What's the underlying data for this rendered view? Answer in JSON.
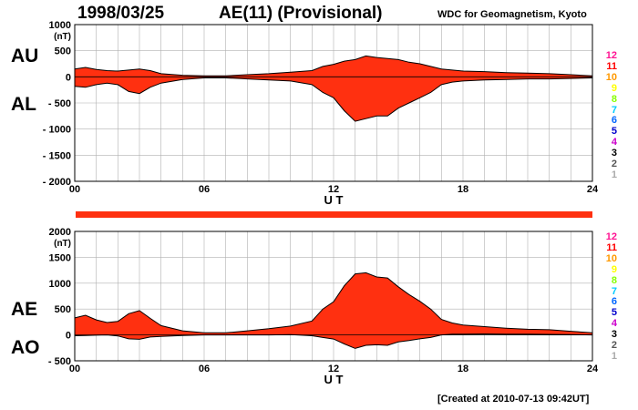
{
  "header": {
    "date": "1998/03/25",
    "title": "AE(11) (Provisional)",
    "organization": "WDC for Geomagnetism, Kyoto"
  },
  "footer": {
    "created": "[Created at 2010-07-13 09:42UT]"
  },
  "colors": {
    "fill": "#ff3010",
    "outline": "#000000",
    "grid": "#b0b0b0"
  },
  "legend": {
    "stations": [
      "12",
      "11",
      "10",
      "9",
      "8",
      "7",
      "6",
      "5",
      "4",
      "3",
      "2",
      "1"
    ],
    "colors": [
      "#ff1493",
      "#ff0000",
      "#ff9900",
      "#ffff00",
      "#88ff00",
      "#00ccff",
      "#0066ff",
      "#0000cc",
      "#cc00cc",
      "#000000",
      "#555555",
      "#aaaaaa"
    ]
  },
  "chart_data": [
    {
      "type": "area",
      "panel": "top",
      "unit": "(nT)",
      "labels": {
        "upper": "AU",
        "lower": "AL"
      },
      "xlabel": "U T",
      "xlim": [
        0,
        24
      ],
      "xticks": [
        "00",
        "06",
        "12",
        "18",
        "24"
      ],
      "ylim": [
        -2000,
        1000
      ],
      "yticks": [
        "1000",
        "500",
        "0",
        "- 500",
        "- 1000",
        "- 1500",
        "- 2000"
      ],
      "grid": true,
      "series": [
        {
          "name": "AU",
          "x": [
            0,
            0.5,
            1,
            1.5,
            2,
            2.5,
            3,
            3.5,
            4,
            5,
            6,
            7,
            8,
            9,
            10,
            11,
            11.5,
            12,
            12.5,
            13,
            13.5,
            14,
            14.5,
            15,
            15.5,
            16,
            16.5,
            17,
            17.5,
            18,
            19,
            20,
            21,
            22,
            23,
            24
          ],
          "values": [
            150,
            180,
            140,
            120,
            110,
            130,
            150,
            120,
            60,
            30,
            20,
            20,
            40,
            60,
            90,
            120,
            200,
            240,
            300,
            330,
            400,
            370,
            350,
            330,
            280,
            250,
            200,
            150,
            130,
            110,
            100,
            80,
            70,
            60,
            40,
            20
          ]
        },
        {
          "name": "AL",
          "x": [
            0,
            0.5,
            1,
            1.5,
            2,
            2.5,
            3,
            3.5,
            4,
            5,
            6,
            7,
            8,
            9,
            10,
            11,
            11.5,
            12,
            12.5,
            13,
            13.5,
            14,
            14.5,
            15,
            15.5,
            16,
            16.5,
            17,
            17.5,
            18,
            19,
            20,
            21,
            22,
            23,
            24
          ],
          "values": [
            -180,
            -200,
            -150,
            -120,
            -150,
            -280,
            -320,
            -200,
            -120,
            -50,
            -20,
            -20,
            -40,
            -60,
            -80,
            -150,
            -300,
            -400,
            -650,
            -850,
            -800,
            -750,
            -750,
            -600,
            -500,
            -400,
            -300,
            -150,
            -100,
            -80,
            -60,
            -50,
            -40,
            -40,
            -30,
            -20
          ]
        }
      ]
    },
    {
      "type": "area",
      "panel": "bottom",
      "unit": "(nT)",
      "labels": {
        "upper": "AE",
        "lower": "AO"
      },
      "xlabel": "U T",
      "xlim": [
        0,
        24
      ],
      "xticks": [
        "00",
        "06",
        "12",
        "18",
        "24"
      ],
      "ylim": [
        -500,
        2000
      ],
      "yticks": [
        "2000",
        "1500",
        "1000",
        "500",
        "0",
        "- 500"
      ],
      "grid": true,
      "series": [
        {
          "name": "AE",
          "x": [
            0,
            0.5,
            1,
            1.5,
            2,
            2.5,
            3,
            3.5,
            4,
            5,
            6,
            7,
            8,
            9,
            10,
            11,
            11.5,
            12,
            12.5,
            13,
            13.5,
            14,
            14.5,
            15,
            15.5,
            16,
            16.5,
            17,
            17.5,
            18,
            19,
            20,
            21,
            22,
            23,
            24
          ],
          "values": [
            330,
            380,
            290,
            240,
            260,
            410,
            470,
            320,
            180,
            80,
            40,
            40,
            80,
            120,
            170,
            270,
            500,
            640,
            950,
            1180,
            1200,
            1120,
            1100,
            930,
            780,
            650,
            500,
            300,
            230,
            190,
            160,
            130,
            110,
            100,
            70,
            40
          ]
        },
        {
          "name": "AO",
          "x": [
            0,
            0.5,
            1,
            1.5,
            2,
            2.5,
            3,
            3.5,
            4,
            5,
            6,
            7,
            8,
            9,
            10,
            11,
            11.5,
            12,
            12.5,
            13,
            13.5,
            14,
            14.5,
            15,
            15.5,
            16,
            16.5,
            17,
            17.5,
            18,
            19,
            20,
            21,
            22,
            23,
            24
          ],
          "values": [
            -15,
            -10,
            -5,
            0,
            -20,
            -75,
            -85,
            -40,
            -30,
            -10,
            0,
            0,
            0,
            0,
            5,
            -15,
            -50,
            -80,
            -175,
            -260,
            -200,
            -190,
            -200,
            -135,
            -110,
            -75,
            -50,
            0,
            15,
            15,
            20,
            15,
            15,
            10,
            5,
            0
          ]
        }
      ]
    }
  ]
}
